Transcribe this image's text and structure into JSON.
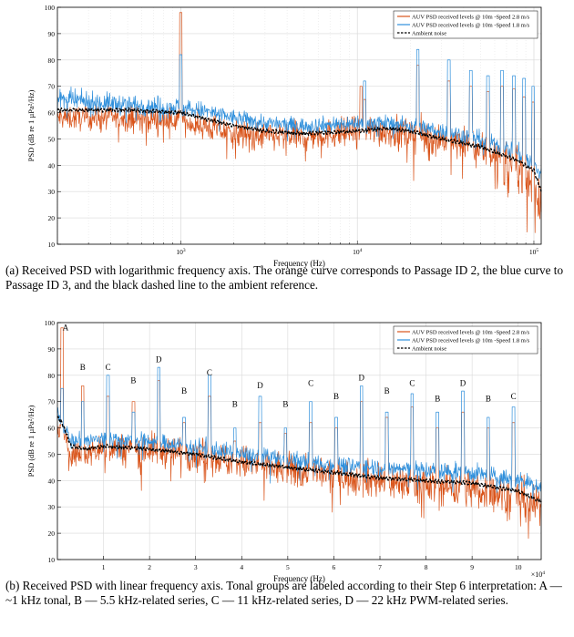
{
  "colors": {
    "orange": "#d95319",
    "blue": "#2f8fdb",
    "black": "#000000",
    "grid": "#d9d9d9"
  },
  "captions": {
    "a": "(a) Received PSD with logarithmic frequency axis.  The orange curve corresponds to Passage ID 2, the blue curve to Passage ID 3, and the black dashed line to the ambient reference.",
    "b": "(b) Received PSD with linear frequency axis. Tonal groups are labeled according to their Step 6 interpretation: A — ~1 kHz tonal, B — 5.5 kHz-related series, C — 11 kHz-related series, D — 22 kHz PWM-related series."
  },
  "chart_data": [
    {
      "type": "line",
      "xscale": "log",
      "xlabel": "Frequency (Hz)",
      "ylabel": "PSD (dB re 1 µPa²/Hz)",
      "xlim": [
        200,
        110000
      ],
      "ylim": [
        10,
        100
      ],
      "yticks": [
        10,
        20,
        30,
        40,
        50,
        60,
        70,
        80,
        90,
        100
      ],
      "xticks": [
        {
          "value": 1000,
          "base": "10",
          "exp": "3"
        },
        {
          "value": 10000,
          "base": "10",
          "exp": "4"
        },
        {
          "value": 100000,
          "base": "10",
          "exp": "5"
        }
      ],
      "grid": true,
      "legend_position": "top-right",
      "legend": [
        "AUV PSD  received levels @ 10m -Speed 2.8 m/s",
        "AUV PSD  received levels @ 10m -Speed 1.8 m/s",
        "Ambient noise"
      ],
      "series": [
        {
          "name": "AUV PSD  received levels @ 10m -Speed 2.8 m/s",
          "style": "solid",
          "color": "orange",
          "baseline": [
            [
              200,
              58
            ],
            [
              500,
              58
            ],
            [
              1000,
              57
            ],
            [
              1500,
              54
            ],
            [
              2000,
              52
            ],
            [
              3000,
              51
            ],
            [
              5000,
              51
            ],
            [
              10000,
              53
            ],
            [
              15000,
              53
            ],
            [
              20000,
              52
            ],
            [
              30000,
              50
            ],
            [
              50000,
              46
            ],
            [
              80000,
              40
            ],
            [
              100000,
              32
            ],
            [
              110000,
              25
            ]
          ],
          "spread": [
            [
              200,
              6
            ],
            [
              1000,
              6
            ],
            [
              2000,
              7
            ],
            [
              5000,
              7
            ],
            [
              20000,
              8
            ],
            [
              50000,
              9
            ],
            [
              110000,
              11
            ]
          ],
          "peaks": [
            [
              1000,
              98
            ],
            [
              10500,
              70
            ],
            [
              11000,
              65
            ],
            [
              22000,
              78
            ],
            [
              33000,
              72
            ],
            [
              44000,
              70
            ],
            [
              55000,
              68
            ],
            [
              66000,
              70
            ],
            [
              77000,
              69
            ],
            [
              88000,
              66
            ],
            [
              99000,
              64
            ]
          ]
        },
        {
          "name": "AUV PSD  received levels @ 10m -Speed 1.8 m/s",
          "style": "solid",
          "color": "blue",
          "baseline": [
            [
              200,
              65
            ],
            [
              500,
              63
            ],
            [
              1000,
              62
            ],
            [
              1500,
              60
            ],
            [
              2000,
              58
            ],
            [
              3000,
              56
            ],
            [
              5000,
              55
            ],
            [
              10000,
              56
            ],
            [
              15000,
              56
            ],
            [
              20000,
              55
            ],
            [
              30000,
              53
            ],
            [
              50000,
              50
            ],
            [
              80000,
              45
            ],
            [
              100000,
              40
            ],
            [
              110000,
              36
            ]
          ],
          "spread": [
            [
              200,
              5
            ],
            [
              1000,
              5
            ],
            [
              2000,
              4
            ],
            [
              5000,
              4
            ],
            [
              20000,
              4
            ],
            [
              50000,
              4
            ],
            [
              110000,
              5
            ]
          ],
          "peaks": [
            [
              1000,
              82
            ],
            [
              11000,
              72
            ],
            [
              22000,
              84
            ],
            [
              33000,
              80
            ],
            [
              44000,
              76
            ],
            [
              55000,
              74
            ],
            [
              66000,
              76
            ],
            [
              77000,
              74
            ],
            [
              88000,
              73
            ],
            [
              99000,
              70
            ]
          ]
        },
        {
          "name": "Ambient noise",
          "style": "dashed",
          "color": "black",
          "baseline": [
            [
              200,
              61
            ],
            [
              500,
              61
            ],
            [
              1000,
              60
            ],
            [
              1500,
              57
            ],
            [
              2000,
              55
            ],
            [
              3000,
              53
            ],
            [
              5000,
              52
            ],
            [
              10000,
              53
            ],
            [
              15000,
              54
            ],
            [
              20000,
              53
            ],
            [
              30000,
              50
            ],
            [
              50000,
              47
            ],
            [
              80000,
              42
            ],
            [
              100000,
              38
            ],
            [
              110000,
              30
            ]
          ],
          "spread": [
            [
              200,
              0.8
            ],
            [
              110000,
              0.8
            ]
          ],
          "peaks": []
        }
      ]
    },
    {
      "type": "line",
      "xscale": "linear",
      "xlabel": "Frequency (Hz)",
      "ylabel": "PSD (dB re 1 µPa²/Hz)",
      "xlim": [
        0,
        105000
      ],
      "ylim": [
        10,
        100
      ],
      "yticks": [
        10,
        20,
        30,
        40,
        50,
        60,
        70,
        80,
        90,
        100
      ],
      "xticks": [
        {
          "value": 10000,
          "label": "1"
        },
        {
          "value": 20000,
          "label": "2"
        },
        {
          "value": 30000,
          "label": "3"
        },
        {
          "value": 40000,
          "label": "4"
        },
        {
          "value": 50000,
          "label": "5"
        },
        {
          "value": 60000,
          "label": "6"
        },
        {
          "value": 70000,
          "label": "7"
        },
        {
          "value": 80000,
          "label": "8"
        },
        {
          "value": 90000,
          "label": "9"
        },
        {
          "value": 100000,
          "label": "10"
        }
      ],
      "multiplier": {
        "base": "×10",
        "exp": "4"
      },
      "grid": true,
      "legend_position": "top-right",
      "legend": [
        "AUV PSD  received levels @ 10m -Speed 2.8 m/s",
        "AUV PSD  received levels @ 10m -Speed 1.8 m/s",
        "Ambient noise"
      ],
      "annotations": [
        {
          "text": "A",
          "x": 1000,
          "y": 97
        },
        {
          "text": "B",
          "x": 5500,
          "y": 82
        },
        {
          "text": "C",
          "x": 11000,
          "y": 82
        },
        {
          "text": "B",
          "x": 16500,
          "y": 77
        },
        {
          "text": "D",
          "x": 22000,
          "y": 85
        },
        {
          "text": "B",
          "x": 27500,
          "y": 73
        },
        {
          "text": "C",
          "x": 33000,
          "y": 80
        },
        {
          "text": "B",
          "x": 38500,
          "y": 68
        },
        {
          "text": "D",
          "x": 44000,
          "y": 75
        },
        {
          "text": "B",
          "x": 49500,
          "y": 68
        },
        {
          "text": "C",
          "x": 55000,
          "y": 76
        },
        {
          "text": "B",
          "x": 60500,
          "y": 71
        },
        {
          "text": "D",
          "x": 66000,
          "y": 78
        },
        {
          "text": "B",
          "x": 71500,
          "y": 73
        },
        {
          "text": "C",
          "x": 77000,
          "y": 76
        },
        {
          "text": "B",
          "x": 82500,
          "y": 70
        },
        {
          "text": "D",
          "x": 88000,
          "y": 76
        },
        {
          "text": "B",
          "x": 93500,
          "y": 70
        },
        {
          "text": "C",
          "x": 99000,
          "y": 71
        }
      ],
      "series": [
        {
          "name": "AUV PSD  received levels @ 10m -Speed 2.8 m/s",
          "style": "solid",
          "color": "orange",
          "baseline": [
            [
              200,
              60
            ],
            [
              1000,
              58
            ],
            [
              3000,
              50
            ],
            [
              6000,
              50
            ],
            [
              10000,
              52
            ],
            [
              20000,
              52
            ],
            [
              30000,
              50
            ],
            [
              40000,
              47
            ],
            [
              50000,
              44
            ],
            [
              60000,
              42
            ],
            [
              70000,
              40
            ],
            [
              80000,
              38
            ],
            [
              90000,
              37
            ],
            [
              100000,
              34
            ],
            [
              105000,
              30
            ]
          ],
          "spread": [
            [
              0,
              6
            ],
            [
              20000,
              8
            ],
            [
              60000,
              9
            ],
            [
              105000,
              10
            ]
          ],
          "peaks": [
            [
              1000,
              98
            ],
            [
              5500,
              76
            ],
            [
              11000,
              72
            ],
            [
              16500,
              70
            ],
            [
              22000,
              78
            ],
            [
              27500,
              62
            ],
            [
              33000,
              72
            ],
            [
              38500,
              55
            ],
            [
              44000,
              62
            ],
            [
              49500,
              58
            ],
            [
              55000,
              62
            ],
            [
              60500,
              60
            ],
            [
              66000,
              70
            ],
            [
              71500,
              64
            ],
            [
              77000,
              68
            ],
            [
              82500,
              60
            ],
            [
              88000,
              66
            ],
            [
              93500,
              60
            ],
            [
              99000,
              62
            ]
          ]
        },
        {
          "name": "AUV PSD  received levels @ 10m -Speed 1.8 m/s",
          "style": "solid",
          "color": "blue",
          "baseline": [
            [
              200,
              66
            ],
            [
              1000,
              62
            ],
            [
              3000,
              55
            ],
            [
              6000,
              55
            ],
            [
              10000,
              56
            ],
            [
              20000,
              55
            ],
            [
              30000,
              53
            ],
            [
              40000,
              50
            ],
            [
              50000,
              48
            ],
            [
              60000,
              46
            ],
            [
              70000,
              45
            ],
            [
              80000,
              44
            ],
            [
              90000,
              43
            ],
            [
              100000,
              40
            ],
            [
              105000,
              38
            ]
          ],
          "spread": [
            [
              0,
              4
            ],
            [
              105000,
              4.5
            ]
          ],
          "peaks": [
            [
              1000,
              75
            ],
            [
              5500,
              70
            ],
            [
              11000,
              80
            ],
            [
              16500,
              66
            ],
            [
              22000,
              83
            ],
            [
              27500,
              64
            ],
            [
              33000,
              80
            ],
            [
              38500,
              60
            ],
            [
              44000,
              72
            ],
            [
              49500,
              60
            ],
            [
              55000,
              70
            ],
            [
              60500,
              64
            ],
            [
              66000,
              76
            ],
            [
              71500,
              66
            ],
            [
              77000,
              73
            ],
            [
              82500,
              66
            ],
            [
              88000,
              74
            ],
            [
              93500,
              64
            ],
            [
              99000,
              68
            ]
          ]
        },
        {
          "name": "Ambient noise",
          "style": "dashed",
          "color": "black",
          "baseline": [
            [
              0,
              64
            ],
            [
              1000,
              62
            ],
            [
              3000,
              53
            ],
            [
              6000,
              52
            ],
            [
              10000,
              53
            ],
            [
              20000,
              52
            ],
            [
              30000,
              50
            ],
            [
              40000,
              47
            ],
            [
              50000,
              45
            ],
            [
              60000,
              43
            ],
            [
              70000,
              41
            ],
            [
              80000,
              40
            ],
            [
              90000,
              39
            ],
            [
              100000,
              36
            ],
            [
              105000,
              32
            ]
          ],
          "spread": [
            [
              0,
              0.8
            ],
            [
              105000,
              0.8
            ]
          ],
          "peaks": []
        }
      ]
    }
  ]
}
